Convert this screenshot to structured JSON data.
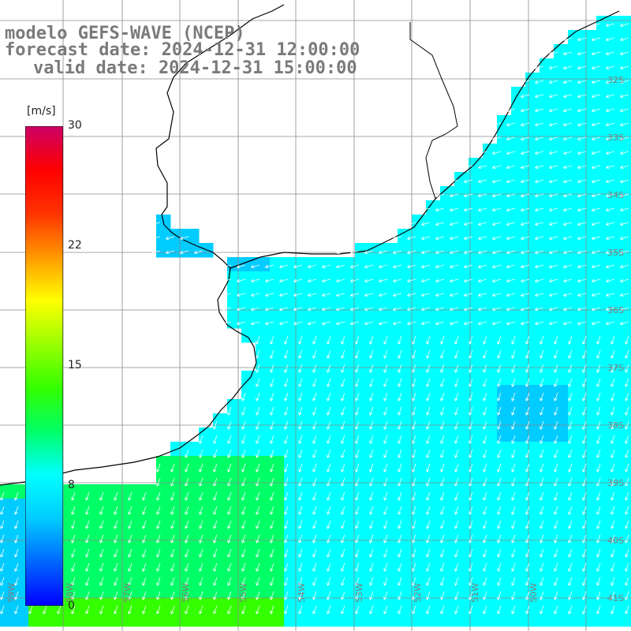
{
  "title": {
    "model": "modelo GEFS-WAVE (NCEP)",
    "forecast": "forecast date: 2024-12-31 12:00:00",
    "valid": "valid date: 2024-12-31 15:00:00"
  },
  "colorbar": {
    "unit": "[m/s]",
    "ticks": [
      "30",
      "22",
      "15",
      "8",
      "0"
    ],
    "tick_values": [
      30,
      22,
      15,
      8,
      0
    ],
    "colors": [
      "#0000ff",
      "#0066ff",
      "#00ccff",
      "#00ffff",
      "#00ff66",
      "#33ff00",
      "#99ff00",
      "#ffff00",
      "#ff9900",
      "#ff3300",
      "#ff0000",
      "#cc0066"
    ]
  },
  "lat_labels": [
    "32S",
    "33S",
    "34S",
    "35S",
    "36S",
    "37S",
    "38S",
    "39S",
    "40S",
    "41S"
  ],
  "lon_labels": [
    "59W",
    "58W",
    "57W",
    "56W",
    "55W",
    "54W",
    "53W",
    "52W",
    "51W",
    "50W"
  ],
  "field": {
    "description_unit": "m/s",
    "speed_range": [
      6,
      13
    ],
    "predominant_wind": "from east / northeast"
  }
}
